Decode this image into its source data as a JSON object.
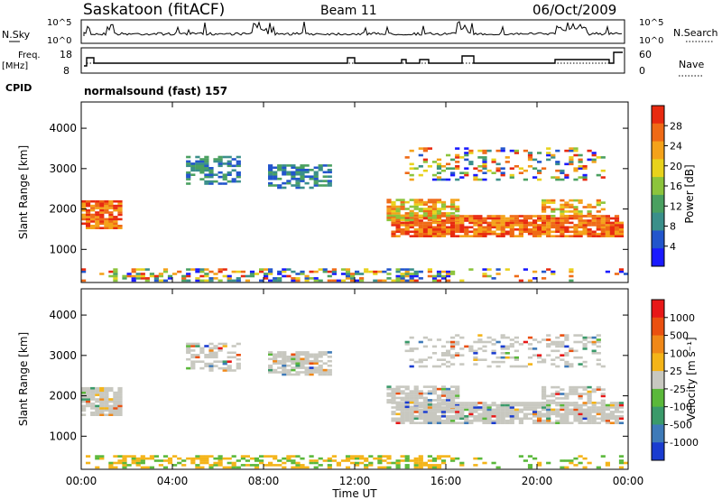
{
  "header": {
    "station": "Saskatoon (fitACF)",
    "beam": "Beam 11",
    "date": "06/Oct/2009"
  },
  "top_panels": {
    "nsky_label": "N.Sky",
    "nsky_ticks": [
      "10^5",
      "10^0"
    ],
    "nsearch_label": "N.Search",
    "nsearch_ticks": [
      "10^5",
      "10^0"
    ],
    "freq_label": "Freq.",
    "freq_unit": "[MHz]",
    "freq_ticks": [
      "18",
      "8"
    ],
    "nave_label": "Nave",
    "nave_ticks": [
      "60",
      "0"
    ],
    "cpid_label": "CPID",
    "cpid_value": "normalsound (fast) 157"
  },
  "chart_data": [
    {
      "type": "heatmap",
      "name": "power",
      "ylabel": "Slant Range [km]",
      "yticks": [
        "1000",
        "2000",
        "3000",
        "4000"
      ],
      "ylim": [
        180,
        4650
      ],
      "colorbar_label": "Power [dB]",
      "colorbar_ticks": [
        "4",
        "8",
        "12",
        "16",
        "20",
        "24",
        "28"
      ],
      "colors": [
        "#1a1aff",
        "#2255cc",
        "#3a8f8a",
        "#4aa060",
        "#8cc43c",
        "#e8d21c",
        "#f4a21a",
        "#ef6a16",
        "#e82a10"
      ]
    },
    {
      "type": "heatmap",
      "name": "velocity",
      "ylabel": "Slant Range [km]",
      "yticks": [
        "1000",
        "2000",
        "3000",
        "4000"
      ],
      "ylim": [
        180,
        4650
      ],
      "colorbar_label": "Velocity [m s⁻¹]",
      "colorbar_ticks": [
        "1000",
        "500",
        "100",
        "25",
        "-25",
        "-100",
        "-500",
        "-1000"
      ],
      "colors": [
        "#1a3cd0",
        "#3e7ab8",
        "#3a9a6a",
        "#5ab83a",
        "#c8c8c0",
        "#f4b418",
        "#f08818",
        "#ea5010",
        "#e81818"
      ]
    }
  ],
  "xaxis": {
    "ticks": [
      "00:00",
      "04:00",
      "08:00",
      "12:00",
      "16:00",
      "20:00",
      "00:00"
    ],
    "label": "Time UT"
  }
}
